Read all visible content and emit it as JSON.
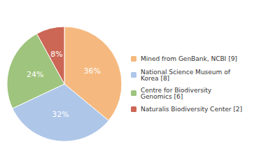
{
  "chart_data": {
    "type": "pie",
    "categories": [
      "Mined from GenBank, NCBI [9]",
      "National Science Museum of\nKorea [8]",
      "Centre for Biodiversity\nGenomics [6]",
      "Naturalis Biodiversity Center [2]"
    ],
    "values": [
      36,
      32,
      24,
      8
    ],
    "value_labels": [
      "36%",
      "32%",
      "24%",
      "8%"
    ],
    "colors": [
      "#f5b97f",
      "#aec6e8",
      "#9fc47d",
      "#cc6655"
    ],
    "data_labels": true,
    "legend": "right"
  }
}
